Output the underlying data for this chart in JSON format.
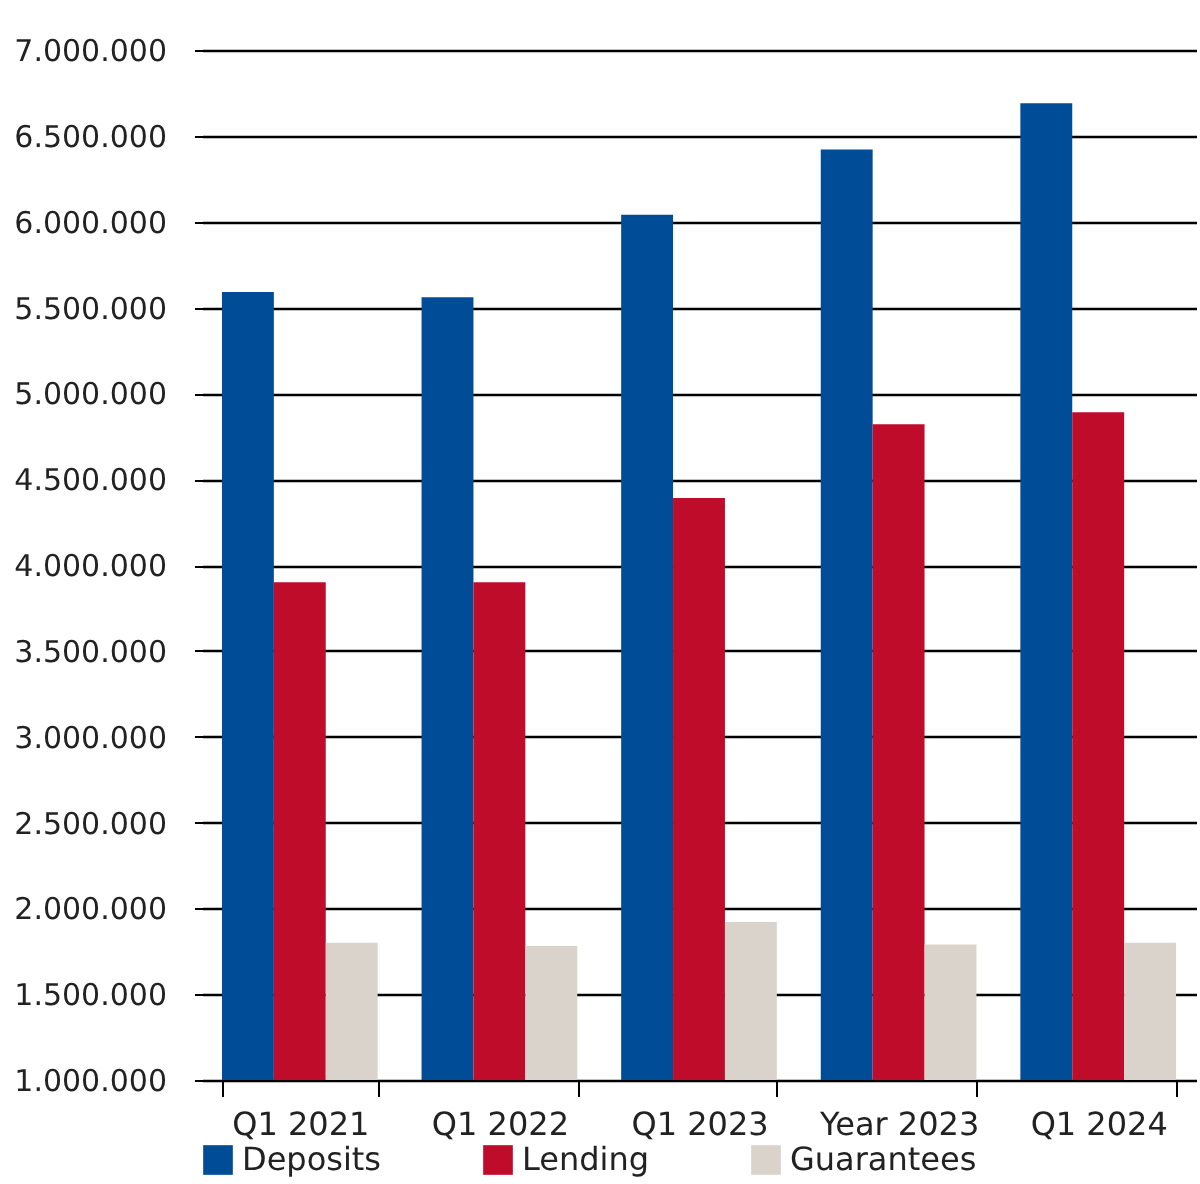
{
  "chart_data": {
    "type": "bar",
    "categories": [
      "Q1 2021",
      "Q1 2022",
      "Q1 2023",
      "Year 2023",
      "Q1 2024"
    ],
    "series": [
      {
        "name": "Deposits",
        "color": "#004c97",
        "values": [
          5590000,
          5560000,
          6040000,
          6420000,
          6690000
        ]
      },
      {
        "name": "Lending",
        "color": "#c00c2b",
        "values": [
          3900000,
          3900000,
          4390000,
          4820000,
          4890000
        ]
      },
      {
        "name": "Guarantees",
        "color": "#d9d3cc",
        "values": [
          1800000,
          1780000,
          1920000,
          1790000,
          1800000
        ]
      }
    ],
    "ylim": [
      1000000,
      7000000
    ],
    "yticks": [
      {
        "value": 1000000,
        "label": "1.000.000"
      },
      {
        "value": 1500000,
        "label": "1.500.000"
      },
      {
        "value": 2000000,
        "label": "2.000.000"
      },
      {
        "value": 2500000,
        "label": "2.500.000"
      },
      {
        "value": 3000000,
        "label": "3.000.000"
      },
      {
        "value": 3500000,
        "label": "3.500.000"
      },
      {
        "value": 4000000,
        "label": "4.000.000"
      },
      {
        "value": 4500000,
        "label": "4.500.000"
      },
      {
        "value": 5000000,
        "label": "5.000.000"
      },
      {
        "value": 5500000,
        "label": "5.500.000"
      },
      {
        "value": 6000000,
        "label": "6.000.000"
      },
      {
        "value": 6500000,
        "label": "6.500.000"
      },
      {
        "value": 7000000,
        "label": "7.000.000"
      }
    ],
    "grid": "y",
    "legend": "bottom"
  }
}
